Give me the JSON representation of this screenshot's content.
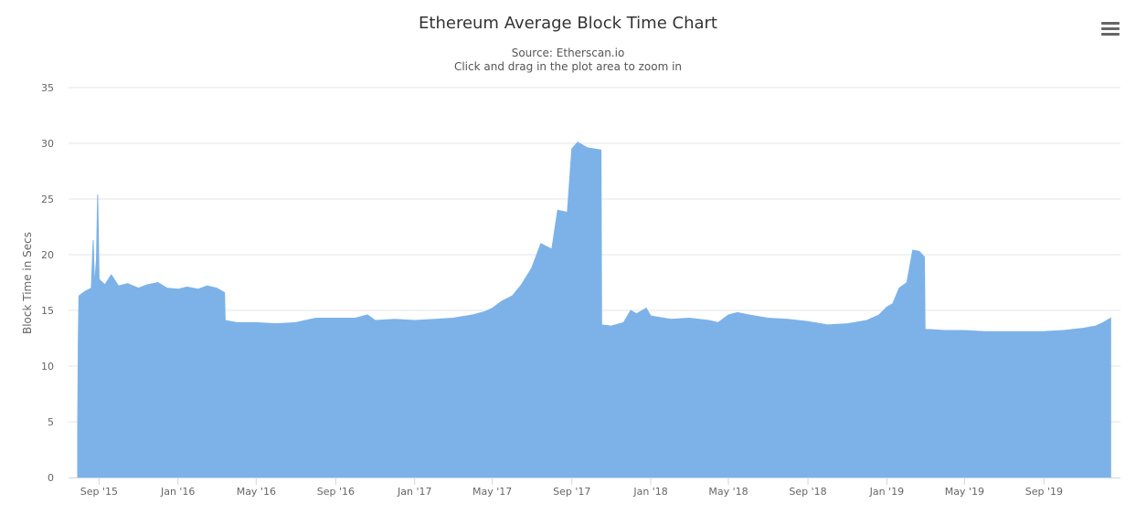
{
  "header": {
    "title": "Ethereum Average Block Time Chart",
    "subtitle_source": "Source: Etherscan.io",
    "subtitle_hint": "Click and drag in the plot area to zoom in",
    "menu_icon": "hamburger-menu-icon"
  },
  "colors": {
    "area_fill": "#7cb2e8",
    "gridline": "#e6e6e6",
    "axis_line": "#ccd6eb",
    "text": "#666666"
  },
  "chart_data": {
    "type": "area",
    "title": "Ethereum Average Block Time Chart",
    "subtitle": "Source: Etherscan.io",
    "xlabel": "",
    "ylabel": "Block Time in Secs",
    "ylim": [
      0,
      35
    ],
    "yticks": [
      0,
      5,
      10,
      15,
      20,
      25,
      30,
      35
    ],
    "xlim": [
      "2015-07-30",
      "2019-12-14"
    ],
    "xticks": [
      {
        "label": "Sep '15",
        "date": "2015-09-01"
      },
      {
        "label": "Jan '16",
        "date": "2016-01-01"
      },
      {
        "label": "May '16",
        "date": "2016-05-01"
      },
      {
        "label": "Sep '16",
        "date": "2016-09-01"
      },
      {
        "label": "Jan '17",
        "date": "2017-01-01"
      },
      {
        "label": "May '17",
        "date": "2017-05-01"
      },
      {
        "label": "Sep '17",
        "date": "2017-09-01"
      },
      {
        "label": "Jan '18",
        "date": "2018-01-01"
      },
      {
        "label": "May '18",
        "date": "2018-05-01"
      },
      {
        "label": "Sep '18",
        "date": "2018-09-01"
      },
      {
        "label": "Jan '19",
        "date": "2019-01-01"
      },
      {
        "label": "May '19",
        "date": "2019-05-01"
      },
      {
        "label": "Sep '19",
        "date": "2019-09-01"
      }
    ],
    "grid": true,
    "legend": "none",
    "series": [
      {
        "values": [
          [
            "2015-07-30",
            4.5
          ],
          [
            "2015-07-31",
            12.5
          ],
          [
            "2015-08-01",
            16.3
          ],
          [
            "2015-08-10",
            16.7
          ],
          [
            "2015-08-20",
            17.0
          ],
          [
            "2015-08-23",
            21.3
          ],
          [
            "2015-08-25",
            17.2
          ],
          [
            "2015-08-28",
            19.5
          ],
          [
            "2015-08-30",
            25.4
          ],
          [
            "2015-09-01",
            17.8
          ],
          [
            "2015-09-10",
            17.3
          ],
          [
            "2015-09-20",
            18.2
          ],
          [
            "2015-10-01",
            17.2
          ],
          [
            "2015-10-15",
            17.4
          ],
          [
            "2015-11-01",
            17.0
          ],
          [
            "2015-11-15",
            17.3
          ],
          [
            "2015-12-01",
            17.5
          ],
          [
            "2015-12-15",
            17.0
          ],
          [
            "2016-01-01",
            16.9
          ],
          [
            "2016-01-15",
            17.1
          ],
          [
            "2016-02-01",
            16.9
          ],
          [
            "2016-02-15",
            17.2
          ],
          [
            "2016-03-01",
            17.0
          ],
          [
            "2016-03-13",
            16.6
          ],
          [
            "2016-03-14",
            14.1
          ],
          [
            "2016-04-01",
            13.9
          ],
          [
            "2016-05-01",
            13.9
          ],
          [
            "2016-06-01",
            13.8
          ],
          [
            "2016-07-01",
            13.9
          ],
          [
            "2016-08-01",
            14.3
          ],
          [
            "2016-09-01",
            14.3
          ],
          [
            "2016-10-01",
            14.3
          ],
          [
            "2016-10-20",
            14.6
          ],
          [
            "2016-11-01",
            14.1
          ],
          [
            "2016-12-01",
            14.2
          ],
          [
            "2017-01-01",
            14.1
          ],
          [
            "2017-02-01",
            14.2
          ],
          [
            "2017-03-01",
            14.3
          ],
          [
            "2017-04-01",
            14.6
          ],
          [
            "2017-04-20",
            14.9
          ],
          [
            "2017-05-01",
            15.2
          ],
          [
            "2017-05-15",
            15.8
          ],
          [
            "2017-06-01",
            16.3
          ],
          [
            "2017-06-15",
            17.3
          ],
          [
            "2017-07-01",
            18.8
          ],
          [
            "2017-07-15",
            21.0
          ],
          [
            "2017-08-01",
            20.5
          ],
          [
            "2017-08-10",
            24.0
          ],
          [
            "2017-08-25",
            23.8
          ],
          [
            "2017-09-01",
            29.5
          ],
          [
            "2017-09-10",
            30.1
          ],
          [
            "2017-09-25",
            29.6
          ],
          [
            "2017-10-16",
            29.4
          ],
          [
            "2017-10-17",
            13.7
          ],
          [
            "2017-11-01",
            13.6
          ],
          [
            "2017-11-20",
            13.9
          ],
          [
            "2017-12-01",
            15.0
          ],
          [
            "2017-12-10",
            14.7
          ],
          [
            "2017-12-25",
            15.2
          ],
          [
            "2018-01-01",
            14.5
          ],
          [
            "2018-02-01",
            14.2
          ],
          [
            "2018-03-01",
            14.3
          ],
          [
            "2018-04-01",
            14.1
          ],
          [
            "2018-04-15",
            13.9
          ],
          [
            "2018-05-01",
            14.6
          ],
          [
            "2018-05-15",
            14.8
          ],
          [
            "2018-06-01",
            14.6
          ],
          [
            "2018-07-01",
            14.3
          ],
          [
            "2018-08-01",
            14.2
          ],
          [
            "2018-09-01",
            14.0
          ],
          [
            "2018-10-01",
            13.7
          ],
          [
            "2018-11-01",
            13.8
          ],
          [
            "2018-12-01",
            14.1
          ],
          [
            "2018-12-20",
            14.6
          ],
          [
            "2019-01-01",
            15.3
          ],
          [
            "2019-01-10",
            15.6
          ],
          [
            "2019-01-20",
            17.0
          ],
          [
            "2019-02-01",
            17.5
          ],
          [
            "2019-02-10",
            20.4
          ],
          [
            "2019-02-20",
            20.3
          ],
          [
            "2019-02-28",
            19.8
          ],
          [
            "2019-03-01",
            13.3
          ],
          [
            "2019-04-01",
            13.2
          ],
          [
            "2019-05-01",
            13.2
          ],
          [
            "2019-06-01",
            13.1
          ],
          [
            "2019-07-01",
            13.1
          ],
          [
            "2019-08-01",
            13.1
          ],
          [
            "2019-09-01",
            13.1
          ],
          [
            "2019-10-01",
            13.2
          ],
          [
            "2019-11-01",
            13.4
          ],
          [
            "2019-11-20",
            13.6
          ],
          [
            "2019-12-01",
            13.9
          ],
          [
            "2019-12-13",
            14.3
          ]
        ]
      }
    ]
  }
}
